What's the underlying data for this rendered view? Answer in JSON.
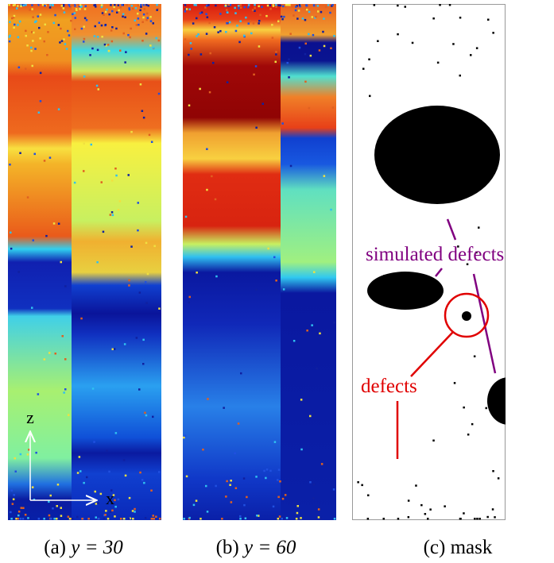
{
  "panels": [
    {
      "label": "(a)",
      "expression": "y = 30"
    },
    {
      "label": "(b)",
      "expression": "y = 60"
    },
    {
      "label": "(c)",
      "expression": "mask"
    }
  ],
  "axes": {
    "vertical": "z",
    "horizontal": "x"
  },
  "annotations": {
    "simulated": "simulated defects",
    "defects": "defects"
  }
}
